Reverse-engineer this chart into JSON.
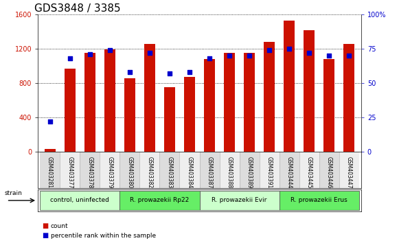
{
  "title": "GDS3848 / 3385",
  "samples": [
    "GSM403281",
    "GSM403377",
    "GSM403378",
    "GSM403379",
    "GSM403380",
    "GSM403382",
    "GSM403383",
    "GSM403384",
    "GSM403387",
    "GSM403388",
    "GSM403389",
    "GSM403391",
    "GSM403444",
    "GSM403445",
    "GSM403446",
    "GSM403447"
  ],
  "counts": [
    30,
    970,
    1150,
    1190,
    860,
    1260,
    750,
    870,
    1080,
    1150,
    1150,
    1280,
    1530,
    1420,
    1080,
    1260
  ],
  "percentiles": [
    22,
    68,
    71,
    74,
    58,
    72,
    57,
    58,
    68,
    70,
    70,
    74,
    75,
    72,
    70,
    70
  ],
  "groups": [
    {
      "label": "control, uninfected",
      "start": 0,
      "end": 3,
      "color": "#ccffcc"
    },
    {
      "label": "R. prowazekii Rp22",
      "start": 4,
      "end": 7,
      "color": "#66ee66"
    },
    {
      "label": "R. prowazekii Evir",
      "start": 8,
      "end": 11,
      "color": "#ccffcc"
    },
    {
      "label": "R. prowazekii Erus",
      "start": 12,
      "end": 15,
      "color": "#66ee66"
    }
  ],
  "bar_color": "#cc1100",
  "dot_color": "#0000cc",
  "ylim_left": [
    0,
    1600
  ],
  "ylim_right": [
    0,
    100
  ],
  "yticks_left": [
    0,
    400,
    800,
    1200,
    1600
  ],
  "yticks_right": [
    0,
    25,
    50,
    75,
    100
  ],
  "ylabel_left_color": "#cc1100",
  "ylabel_right_color": "#0000cc",
  "title_fontsize": 11,
  "tick_fontsize": 7,
  "bar_width": 0.55,
  "background_color": "#ffffff",
  "label_bg_even": "#dddddd",
  "label_bg_odd": "#eeeeee"
}
